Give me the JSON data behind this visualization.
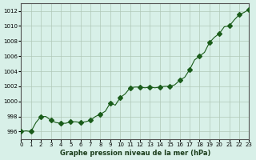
{
  "x": [
    0,
    0.5,
    1,
    1.5,
    2,
    2.5,
    3,
    3.5,
    4,
    4.5,
    5,
    5.5,
    6,
    6.5,
    7,
    7.5,
    8,
    8.5,
    9,
    9.5,
    10,
    10.5,
    11,
    11.5,
    12,
    12.5,
    13,
    13.5,
    14,
    14.5,
    15,
    15.5,
    16,
    16.5,
    17,
    17.5,
    18,
    18.5,
    19,
    19.5,
    20,
    20.5,
    21,
    21.5,
    22,
    22.5,
    23
  ],
  "y": [
    996.0,
    996.1,
    996.0,
    997.2,
    998.0,
    998.0,
    997.5,
    997.2,
    997.1,
    997.1,
    997.3,
    997.3,
    997.2,
    997.3,
    997.5,
    998.0,
    998.3,
    998.7,
    999.8,
    999.5,
    1000.5,
    1001.0,
    1001.8,
    1001.9,
    1001.9,
    1001.8,
    1001.9,
    1001.8,
    1001.9,
    1002.0,
    1002.0,
    1002.2,
    1002.8,
    1003.2,
    1004.2,
    1005.5,
    1006.0,
    1006.5,
    1007.8,
    1008.5,
    1009.0,
    1009.9,
    1010.0,
    1010.8,
    1011.5,
    1011.8,
    1012.2
  ],
  "marker_x": [
    0,
    1,
    2,
    3,
    4,
    5,
    6,
    7,
    8,
    9,
    10,
    11,
    12,
    13,
    14,
    15,
    16,
    17,
    18,
    19,
    20,
    21,
    22,
    23
  ],
  "marker_y": [
    996.0,
    996.0,
    998.0,
    997.5,
    997.1,
    997.3,
    997.2,
    997.5,
    998.3,
    999.8,
    1000.5,
    1001.8,
    1001.9,
    1001.9,
    1001.9,
    1002.0,
    1002.8,
    1004.2,
    1006.0,
    1007.8,
    1009.0,
    1010.0,
    1011.5,
    1012.2
  ],
  "line_color": "#1a5c1a",
  "marker_color": "#1a5c1a",
  "bg_color": "#d8f0e8",
  "grid_color": "#b0c8b8",
  "xlabel": "Graphe pression niveau de la mer (hPa)",
  "xlim": [
    0,
    23
  ],
  "ylim": [
    995,
    1013
  ],
  "yticks": [
    996,
    998,
    1000,
    1002,
    1004,
    1006,
    1008,
    1010,
    1012
  ],
  "xticks": [
    0,
    1,
    2,
    3,
    4,
    5,
    6,
    7,
    8,
    9,
    10,
    11,
    12,
    13,
    14,
    15,
    16,
    17,
    18,
    19,
    20,
    21,
    22,
    23
  ]
}
